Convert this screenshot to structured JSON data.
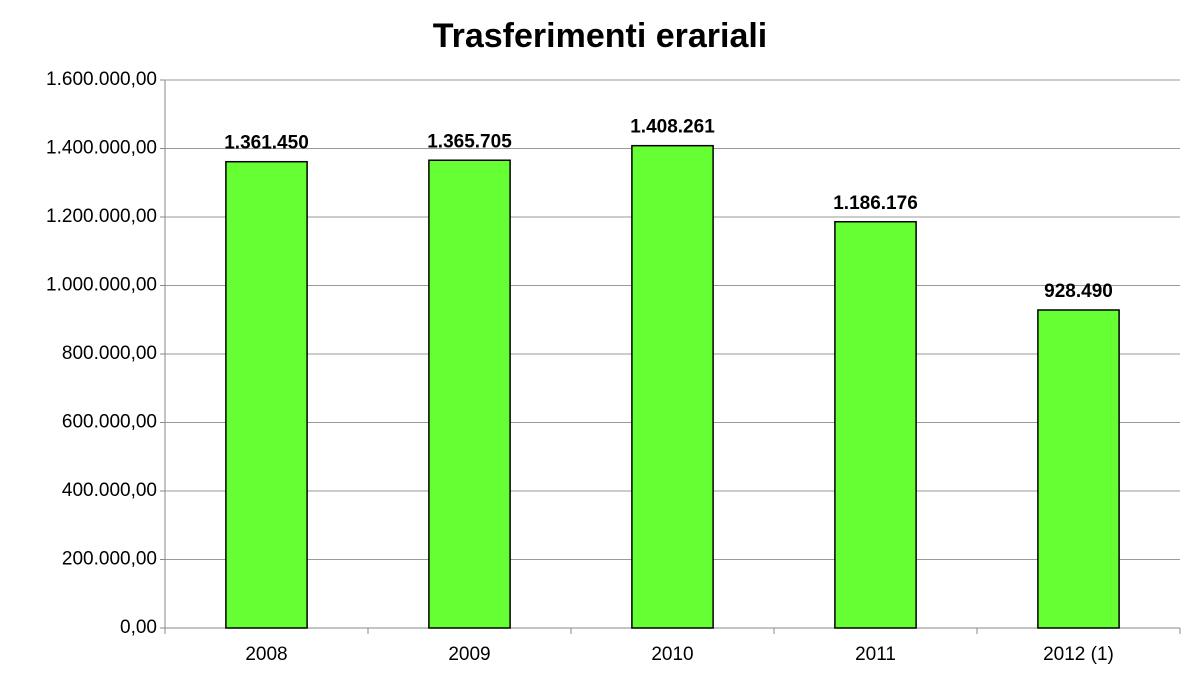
{
  "chart_data": {
    "type": "bar",
    "title": "Trasferimenti erariali",
    "categories": [
      "2008",
      "2009",
      "2010",
      "2011",
      "2012 (1)"
    ],
    "values": [
      1361450,
      1365705,
      1408261,
      1186176,
      928490
    ],
    "value_labels": [
      "1.361.450",
      "1.365.705",
      "1.408.261",
      "1.186.176",
      "928.490"
    ],
    "color": "#66ff33",
    "ylim": [
      0,
      1600000
    ],
    "yticks": [
      {
        "value": 0,
        "label": "0,00"
      },
      {
        "value": 200000,
        "label": "200.000,00"
      },
      {
        "value": 400000,
        "label": "400.000,00"
      },
      {
        "value": 600000,
        "label": "600.000,00"
      },
      {
        "value": 800000,
        "label": "800.000,00"
      },
      {
        "value": 1000000,
        "label": "1.000.000,00"
      },
      {
        "value": 1200000,
        "label": "1.200.000,00"
      },
      {
        "value": 1400000,
        "label": "1.400.000,00"
      },
      {
        "value": 1600000,
        "label": "1.600.000,00"
      }
    ],
    "grid": true
  }
}
